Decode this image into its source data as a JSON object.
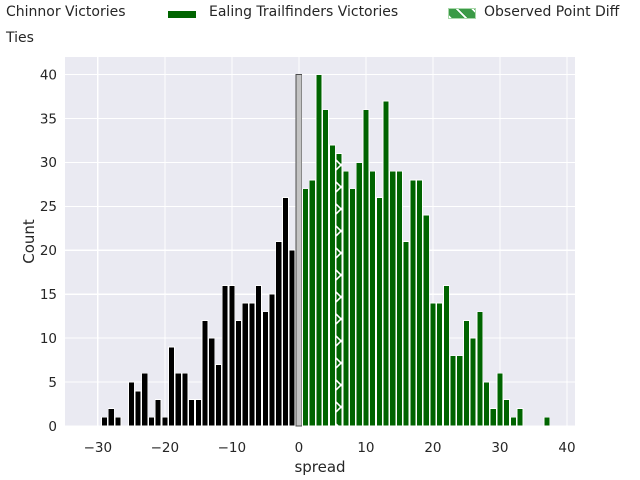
{
  "legend": {
    "items": [
      {
        "label": "Chinnor Victories",
        "series_color": "#000000"
      },
      {
        "label": "Ealing Trailfinders Victories",
        "series_color": "#006400"
      },
      {
        "label": "Observed Point Diff",
        "series_color": "#3a9a46",
        "hatch": "/"
      },
      {
        "label": "Ties",
        "series_color": "#c3c3c3"
      }
    ]
  },
  "chart_data": {
    "type": "bar",
    "subtype": "histogram",
    "title": "",
    "xlabel": "spread",
    "ylabel": "Count",
    "xlim": [
      -34.9,
      41.2
    ],
    "ylim": [
      0,
      42
    ],
    "x_ticks": [
      -30,
      -20,
      -10,
      0,
      10,
      20,
      30,
      40
    ],
    "x_tick_labels": [
      "−30",
      "−20",
      "−10",
      "0",
      "10",
      "20",
      "30",
      "40"
    ],
    "y_ticks": [
      0,
      5,
      10,
      15,
      20,
      25,
      30,
      35,
      40
    ],
    "y_tick_labels": [
      "0",
      "5",
      "10",
      "15",
      "20",
      "25",
      "30",
      "35",
      "40"
    ],
    "bin_width": 1,
    "grid": true,
    "plot_bg": "#eaeaf2",
    "grid_color": "#ffffff",
    "series": [
      {
        "name": "Chinnor Victories",
        "color": "#000000",
        "edge_color": "#ffffff",
        "x_start": -29,
        "counts": [
          1,
          2,
          1,
          0,
          5,
          4,
          6,
          1,
          3,
          1,
          9,
          6,
          6,
          3,
          3,
          12,
          10,
          7,
          16,
          16,
          12,
          14,
          14,
          16,
          13,
          15,
          21,
          26,
          20
        ]
      },
      {
        "name": "Ties",
        "color": "#c3c3c3",
        "edge_color": "#4d4d4d",
        "x_start": 0,
        "counts": [
          40
        ]
      },
      {
        "name": "Ealing Trailfinders Victories",
        "color": "#006400",
        "edge_color": "#ffffff",
        "x_start": 1,
        "counts": [
          27,
          28,
          40,
          36,
          32,
          31,
          29,
          27,
          30,
          36,
          29,
          26,
          37,
          29,
          29,
          21,
          28,
          28,
          24,
          14,
          14,
          16,
          8,
          8,
          12,
          10,
          13,
          5,
          2,
          6,
          3,
          1,
          2,
          0,
          0,
          0,
          1
        ]
      }
    ],
    "observed_point_diff": {
      "x": 6,
      "count": 31,
      "hatch": "x",
      "color": "#006400"
    },
    "legend_position": "top"
  }
}
